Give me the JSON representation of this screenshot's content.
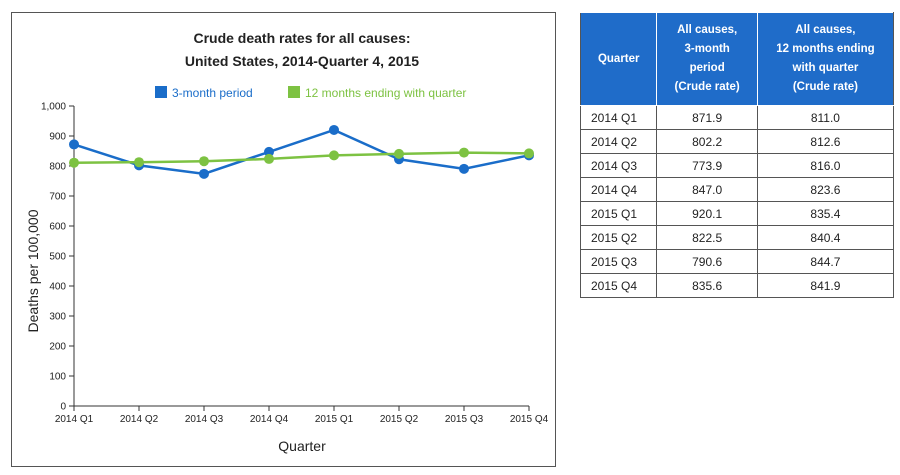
{
  "chart_data": {
    "type": "line",
    "title": "Crude death rates for all causes:",
    "subtitle": "United States, 2014-Quarter 4, 2015",
    "xlabel": "Quarter",
    "ylabel": "Deaths per 100,000",
    "ylim": [
      0,
      1000
    ],
    "yticks": [
      "0",
      "100",
      "200",
      "300",
      "400",
      "500",
      "600",
      "700",
      "800",
      "900",
      "1,000"
    ],
    "categories": [
      "2014 Q1",
      "2014 Q2",
      "2014 Q3",
      "2014 Q4",
      "2015 Q1",
      "2015 Q2",
      "2015 Q3",
      "2015 Q4"
    ],
    "legend_position": "top",
    "grid": false,
    "series": [
      {
        "name": "3-month period",
        "color": "#1a6dc9",
        "values": [
          871.9,
          802.2,
          773.9,
          847.0,
          920.1,
          822.5,
          790.6,
          835.6
        ]
      },
      {
        "name": "12 months ending with quarter",
        "color": "#7dc242",
        "values": [
          811.0,
          812.6,
          816.0,
          823.6,
          835.4,
          840.4,
          844.7,
          841.9
        ]
      }
    ]
  },
  "table": {
    "headers": [
      "Quarter",
      "All causes,\n3-month\nperiod\n(Crude rate)",
      "All causes,\n12 months ending\nwith quarter\n(Crude rate)"
    ],
    "rows": [
      [
        "2014 Q1",
        "871.9",
        "811.0"
      ],
      [
        "2014 Q2",
        "802.2",
        "812.6"
      ],
      [
        "2014 Q3",
        "773.9",
        "816.0"
      ],
      [
        "2014 Q4",
        "847.0",
        "823.6"
      ],
      [
        "2015 Q1",
        "920.1",
        "835.4"
      ],
      [
        "2015 Q2",
        "822.5",
        "840.4"
      ],
      [
        "2015 Q3",
        "790.6",
        "844.7"
      ],
      [
        "2015 Q4",
        "835.6",
        "841.9"
      ]
    ]
  }
}
